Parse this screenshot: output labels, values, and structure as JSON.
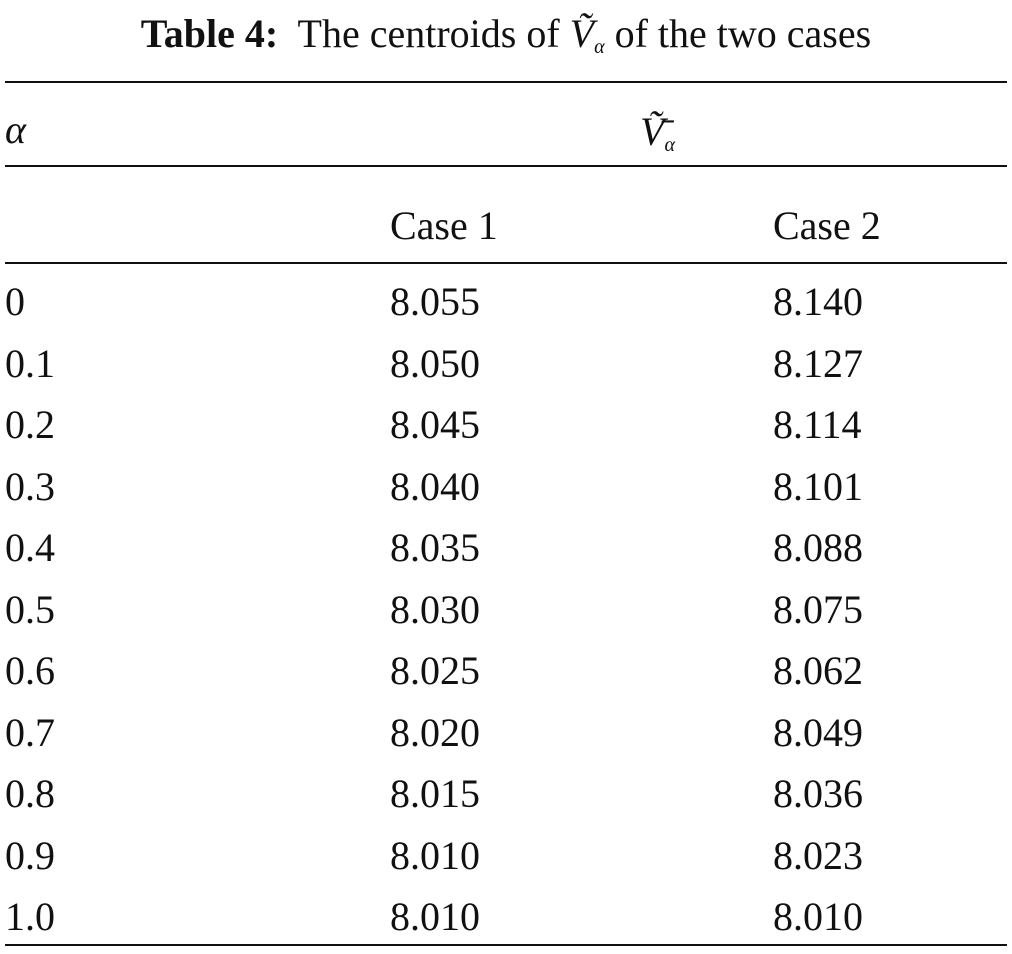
{
  "title": {
    "label": "Table 4:",
    "text_before": "The centroids of",
    "symbol": "Ṽ",
    "symbol_subscript": "α",
    "text_after": "of the two cases"
  },
  "table": {
    "header": {
      "row_label": "α",
      "group_symbol": "Ṽ̄",
      "group_subscript": "α"
    },
    "columns": [
      "Case 1",
      "Case 2"
    ],
    "rows": [
      [
        "0",
        "8.055",
        "8.140"
      ],
      [
        "0.1",
        "8.050",
        "8.127"
      ],
      [
        "0.2",
        "8.045",
        "8.114"
      ],
      [
        "0.3",
        "8.040",
        "8.101"
      ],
      [
        "0.4",
        "8.035",
        "8.088"
      ],
      [
        "0.5",
        "8.030",
        "8.075"
      ],
      [
        "0.6",
        "8.025",
        "8.062"
      ],
      [
        "0.7",
        "8.020",
        "8.049"
      ],
      [
        "0.8",
        "8.015",
        "8.036"
      ],
      [
        "0.9",
        "8.010",
        "8.023"
      ],
      [
        "1.0",
        "8.010",
        "8.010"
      ]
    ]
  }
}
